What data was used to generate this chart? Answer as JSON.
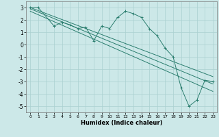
{
  "xlabel": "Humidex (Indice chaleur)",
  "ylabel": "",
  "background_color": "#cce8e8",
  "grid_color": "#aad0d0",
  "line_color": "#2a7d6e",
  "xlim": [
    -0.5,
    23.5
  ],
  "ylim": [
    -5.5,
    3.5
  ],
  "yticks": [
    -5,
    -4,
    -3,
    -2,
    -1,
    0,
    1,
    2,
    3
  ],
  "xticks": [
    0,
    1,
    2,
    3,
    4,
    5,
    6,
    7,
    8,
    9,
    10,
    11,
    12,
    13,
    14,
    15,
    16,
    17,
    18,
    19,
    20,
    21,
    22,
    23
  ],
  "line1_x": [
    0,
    1,
    3,
    4,
    5,
    6,
    7,
    8,
    9,
    10,
    11,
    12,
    13,
    14,
    15,
    16,
    17,
    18,
    19,
    20,
    21,
    22,
    23
  ],
  "line1_y": [
    3.0,
    3.0,
    1.5,
    1.8,
    1.6,
    1.3,
    1.4,
    0.3,
    1.5,
    1.3,
    2.2,
    2.7,
    2.5,
    2.2,
    1.3,
    0.7,
    -0.3,
    -1.0,
    -3.5,
    -5.0,
    -4.5,
    -2.9,
    -3.0
  ],
  "line2_x": [
    0,
    23
  ],
  "line2_y": [
    3.0,
    -2.6
  ],
  "line3_x": [
    0,
    23
  ],
  "line3_y": [
    2.9,
    -3.2
  ],
  "line4_x": [
    0,
    23
  ],
  "line4_y": [
    2.7,
    -3.8
  ]
}
